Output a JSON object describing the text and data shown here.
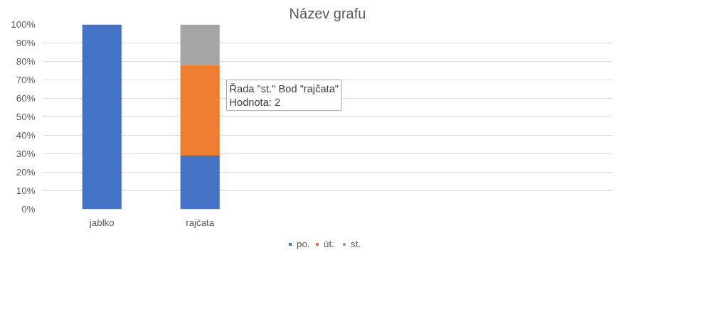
{
  "chart_data": {
    "type": "bar",
    "stacked": true,
    "title": "Název grafu",
    "categories": [
      "jablko",
      "rajčata"
    ],
    "series": [
      {
        "name": "po.",
        "color": "#4472c4",
        "values": [
          100,
          29
        ]
      },
      {
        "name": "út.",
        "color": "#ed7d31",
        "values": [
          0,
          49
        ]
      },
      {
        "name": "st.",
        "color": "#a5a5a5",
        "values": [
          0,
          22
        ]
      }
    ],
    "ylim": [
      0,
      100
    ],
    "yticks": [
      {
        "value": 0,
        "label": "0%"
      },
      {
        "value": 10,
        "label": "10%"
      },
      {
        "value": 20,
        "label": "20%"
      },
      {
        "value": 30,
        "label": "30%"
      },
      {
        "value": 40,
        "label": "40%"
      },
      {
        "value": 50,
        "label": "50%"
      },
      {
        "value": 60,
        "label": "60%"
      },
      {
        "value": 70,
        "label": "70%"
      },
      {
        "value": 80,
        "label": "80%"
      },
      {
        "value": 90,
        "label": "90%"
      },
      {
        "value": 100,
        "label": "100%"
      }
    ],
    "grid": "y",
    "legend": "bottom",
    "annotations": [
      "Řada \"st.\" Bod \"rajčata\"\nHodnota: 2"
    ]
  }
}
